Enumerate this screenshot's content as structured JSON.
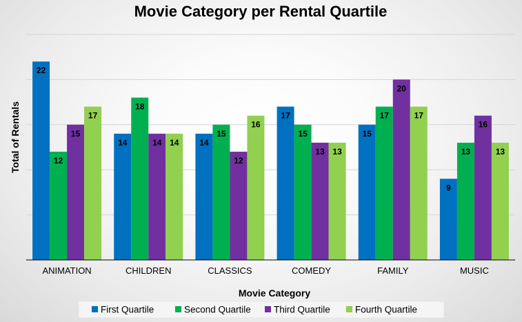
{
  "chart_data": {
    "type": "bar",
    "title": "Movie Category per Rental Quartile",
    "xlabel": "Movie Category",
    "ylabel": "Total of Rentals",
    "categories": [
      "ANIMATION",
      "CHILDREN",
      "CLASSICS",
      "COMEDY",
      "FAMILY",
      "MUSIC"
    ],
    "series": [
      {
        "name": "First Quartile",
        "color": "#0070c0",
        "values": [
          22,
          14,
          14,
          17,
          15,
          9
        ]
      },
      {
        "name": "Second Quartile",
        "color": "#00b050",
        "values": [
          12,
          18,
          15,
          15,
          17,
          13
        ]
      },
      {
        "name": "Third Quartile",
        "color": "#7030a0",
        "values": [
          15,
          14,
          12,
          13,
          20,
          16
        ]
      },
      {
        "name": "Fourth Quartile",
        "color": "#92d050",
        "values": [
          17,
          14,
          16,
          13,
          17,
          13
        ]
      }
    ],
    "ylim": [
      0,
      25
    ],
    "ytick_step": 5,
    "show_y_tick_labels": false,
    "grid": true,
    "data_labels": "inside-end",
    "legend": "bottom"
  }
}
